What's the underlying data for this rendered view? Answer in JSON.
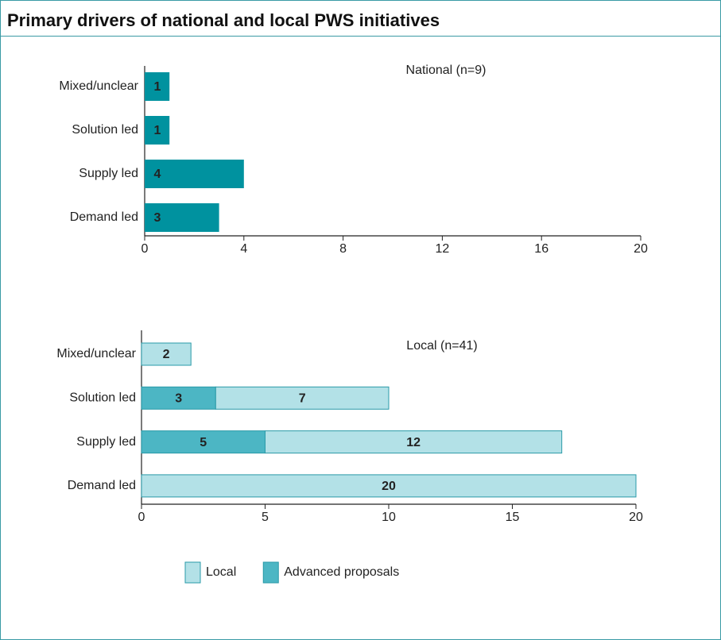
{
  "header": {
    "title": "Primary drivers of national and local PWS initiatives"
  },
  "chart_data": [
    {
      "type": "bar",
      "orientation": "horizontal",
      "title": "National (n=9)",
      "categories": [
        "Mixed/unclear",
        "Solution led",
        "Supply led",
        "Demand led"
      ],
      "values": [
        1,
        1,
        4,
        3
      ],
      "color": "#00929f",
      "xlim": [
        0,
        20
      ],
      "xticks": [
        0,
        4,
        8,
        12,
        16,
        20
      ]
    },
    {
      "type": "bar",
      "orientation": "horizontal",
      "stacked": true,
      "title": "Local (n=41)",
      "categories": [
        "Mixed/unclear",
        "Solution led",
        "Supply led",
        "Demand led"
      ],
      "series": [
        {
          "name": "Advanced proposals",
          "color": "#4cb6c4",
          "values": [
            null,
            3,
            5,
            null
          ]
        },
        {
          "name": "Local",
          "color": "#b3e1e7",
          "values": [
            2,
            7,
            12,
            20
          ]
        }
      ],
      "xlim": [
        0,
        20
      ],
      "xticks": [
        0,
        5,
        10,
        15,
        20
      ]
    }
  ]
}
